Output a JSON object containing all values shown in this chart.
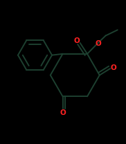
{
  "background": "#000000",
  "bond_color": "#1d4030",
  "oxygen_color": "#ff2222",
  "lw": 1.4,
  "dbo": 0.018,
  "figsize": [
    1.82,
    2.08
  ],
  "dpi": 100,
  "xlim": [
    0.0,
    1.0
  ],
  "ylim": [
    0.0,
    1.0
  ]
}
